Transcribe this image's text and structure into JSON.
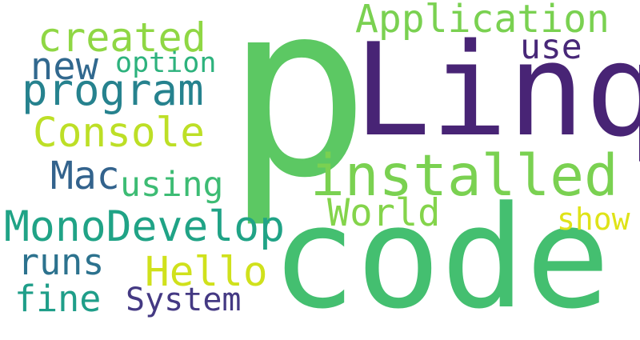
{
  "words": {
    "p": {
      "text": "p",
      "color": "#5cc863"
    },
    "linq": {
      "text": "Linq",
      "color": "#482475"
    },
    "code": {
      "text": "code",
      "color": "#44bf70"
    },
    "installed": {
      "text": "installed",
      "color": "#7ad151"
    },
    "application": {
      "text": "Application",
      "color": "#7ad151"
    },
    "created": {
      "text": "created",
      "color": "#8fd744"
    },
    "new": {
      "text": "new",
      "color": "#31688e"
    },
    "option": {
      "text": "option",
      "color": "#2db27d"
    },
    "use": {
      "text": "use",
      "color": "#482878"
    },
    "program": {
      "text": "program",
      "color": "#26828e"
    },
    "console": {
      "text": "Console",
      "color": "#bddf26"
    },
    "mac": {
      "text": "Mac",
      "color": "#33638d"
    },
    "using": {
      "text": "using",
      "color": "#3dbc74"
    },
    "monodevelop": {
      "text": "MonoDevelop",
      "color": "#20a386"
    },
    "world": {
      "text": "World",
      "color": "#84d44b"
    },
    "show": {
      "text": "show",
      "color": "#dfe318"
    },
    "runs": {
      "text": "runs",
      "color": "#2c728e"
    },
    "hello": {
      "text": "Hello",
      "color": "#d0e11c"
    },
    "fine": {
      "text": "fine",
      "color": "#1f9e89"
    },
    "system": {
      "text": "System",
      "color": "#443983"
    }
  }
}
